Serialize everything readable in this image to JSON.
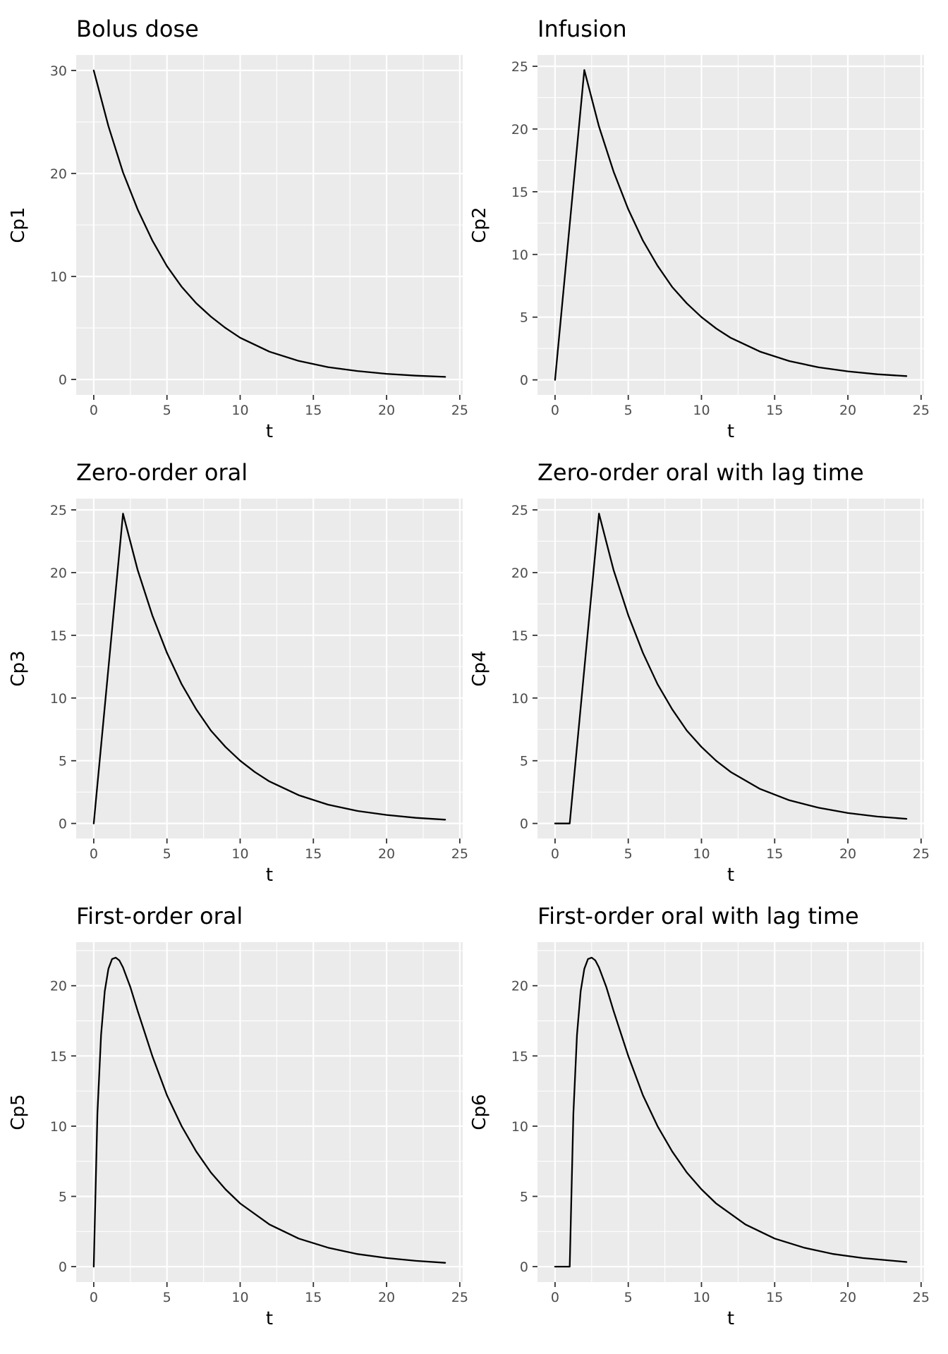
{
  "chart_data": [
    {
      "type": "line",
      "title": "Bolus dose",
      "xlabel": "t",
      "ylabel": "Cp1",
      "xlim": [
        -1.2,
        25.2
      ],
      "ylim": [
        -1.5,
        31.5
      ],
      "xticks": [
        0,
        5,
        10,
        15,
        20,
        25
      ],
      "yticks": [
        0,
        10,
        20,
        30
      ],
      "grid": true,
      "series": [
        {
          "x": [
            0,
            1,
            2,
            3,
            4,
            5,
            6,
            7,
            8,
            9,
            10,
            12,
            14,
            16,
            18,
            20,
            22,
            24
          ],
          "y": [
            30,
            24.6,
            20.1,
            16.5,
            13.5,
            11.0,
            9.0,
            7.4,
            6.1,
            5.0,
            4.05,
            2.7,
            1.8,
            1.2,
            0.82,
            0.55,
            0.37,
            0.25
          ]
        }
      ]
    },
    {
      "type": "line",
      "title": "Infusion",
      "xlabel": "t",
      "ylabel": "Cp2",
      "xlim": [
        -1.2,
        25.2
      ],
      "ylim": [
        -1.2,
        25.9
      ],
      "xticks": [
        0,
        5,
        10,
        15,
        20,
        25
      ],
      "yticks": [
        0,
        5,
        10,
        15,
        20,
        25
      ],
      "grid": true,
      "series": [
        {
          "x": [
            0,
            2,
            3,
            4,
            5,
            6,
            7,
            8,
            9,
            10,
            11,
            12,
            14,
            16,
            18,
            20,
            22,
            24
          ],
          "y": [
            0,
            24.7,
            20.2,
            16.6,
            13.6,
            11.1,
            9.1,
            7.4,
            6.1,
            5.0,
            4.1,
            3.35,
            2.25,
            1.5,
            1.0,
            0.68,
            0.45,
            0.3
          ]
        }
      ]
    },
    {
      "type": "line",
      "title": "Zero-order oral",
      "xlabel": "t",
      "ylabel": "Cp3",
      "xlim": [
        -1.2,
        25.2
      ],
      "ylim": [
        -1.2,
        25.9
      ],
      "xticks": [
        0,
        5,
        10,
        15,
        20,
        25
      ],
      "yticks": [
        0,
        5,
        10,
        15,
        20,
        25
      ],
      "grid": true,
      "series": [
        {
          "x": [
            0,
            2,
            3,
            4,
            5,
            6,
            7,
            8,
            9,
            10,
            11,
            12,
            14,
            16,
            18,
            20,
            22,
            24
          ],
          "y": [
            0,
            24.7,
            20.2,
            16.6,
            13.6,
            11.1,
            9.1,
            7.4,
            6.1,
            5.0,
            4.1,
            3.35,
            2.25,
            1.5,
            1.0,
            0.68,
            0.45,
            0.3
          ]
        }
      ]
    },
    {
      "type": "line",
      "title": "Zero-order oral with lag time",
      "xlabel": "t",
      "ylabel": "Cp4",
      "xlim": [
        -1.2,
        25.2
      ],
      "ylim": [
        -1.2,
        25.9
      ],
      "xticks": [
        0,
        5,
        10,
        15,
        20,
        25
      ],
      "yticks": [
        0,
        5,
        10,
        15,
        20,
        25
      ],
      "grid": true,
      "series": [
        {
          "x": [
            0,
            1,
            3,
            4,
            5,
            6,
            7,
            8,
            9,
            10,
            11,
            12,
            14,
            16,
            18,
            20,
            22,
            24
          ],
          "y": [
            0,
            0,
            24.7,
            20.2,
            16.6,
            13.6,
            11.1,
            9.1,
            7.4,
            6.1,
            5.0,
            4.1,
            2.75,
            1.85,
            1.25,
            0.83,
            0.55,
            0.37
          ]
        }
      ]
    },
    {
      "type": "line",
      "title": "First-order oral",
      "xlabel": "t",
      "ylabel": "Cp5",
      "xlim": [
        -1.2,
        25.2
      ],
      "ylim": [
        -1.1,
        23.1
      ],
      "xticks": [
        0,
        5,
        10,
        15,
        20,
        25
      ],
      "yticks": [
        0,
        5,
        10,
        15,
        20
      ],
      "grid": true,
      "series": [
        {
          "x": [
            0,
            0.25,
            0.5,
            0.75,
            1,
            1.25,
            1.5,
            1.75,
            2,
            2.5,
            3,
            3.5,
            4,
            5,
            6,
            7,
            8,
            9,
            10,
            12,
            14,
            16,
            18,
            20,
            22,
            24
          ],
          "y": [
            0,
            10.9,
            16.5,
            19.6,
            21.2,
            21.9,
            22.0,
            21.8,
            21.3,
            19.9,
            18.2,
            16.6,
            15.0,
            12.2,
            10.0,
            8.2,
            6.7,
            5.5,
            4.5,
            3.0,
            2.0,
            1.35,
            0.9,
            0.61,
            0.41,
            0.27
          ]
        }
      ]
    },
    {
      "type": "line",
      "title": "First-order oral with lag time",
      "xlabel": "t",
      "ylabel": "Cp6",
      "xlim": [
        -1.2,
        25.2
      ],
      "ylim": [
        -1.1,
        23.1
      ],
      "xticks": [
        0,
        5,
        10,
        15,
        20,
        25
      ],
      "yticks": [
        0,
        5,
        10,
        15,
        20
      ],
      "grid": true,
      "series": [
        {
          "x": [
            0,
            1,
            1.25,
            1.5,
            1.75,
            2,
            2.25,
            2.5,
            2.75,
            3,
            3.5,
            4,
            4.5,
            5,
            6,
            7,
            8,
            9,
            10,
            11,
            13,
            15,
            17,
            19,
            21,
            24
          ],
          "y": [
            0,
            0,
            10.9,
            16.5,
            19.6,
            21.2,
            21.9,
            22.0,
            21.8,
            21.3,
            19.9,
            18.2,
            16.6,
            15.0,
            12.2,
            10.0,
            8.2,
            6.7,
            5.5,
            4.5,
            3.0,
            2.0,
            1.35,
            0.9,
            0.61,
            0.33
          ]
        }
      ]
    }
  ]
}
